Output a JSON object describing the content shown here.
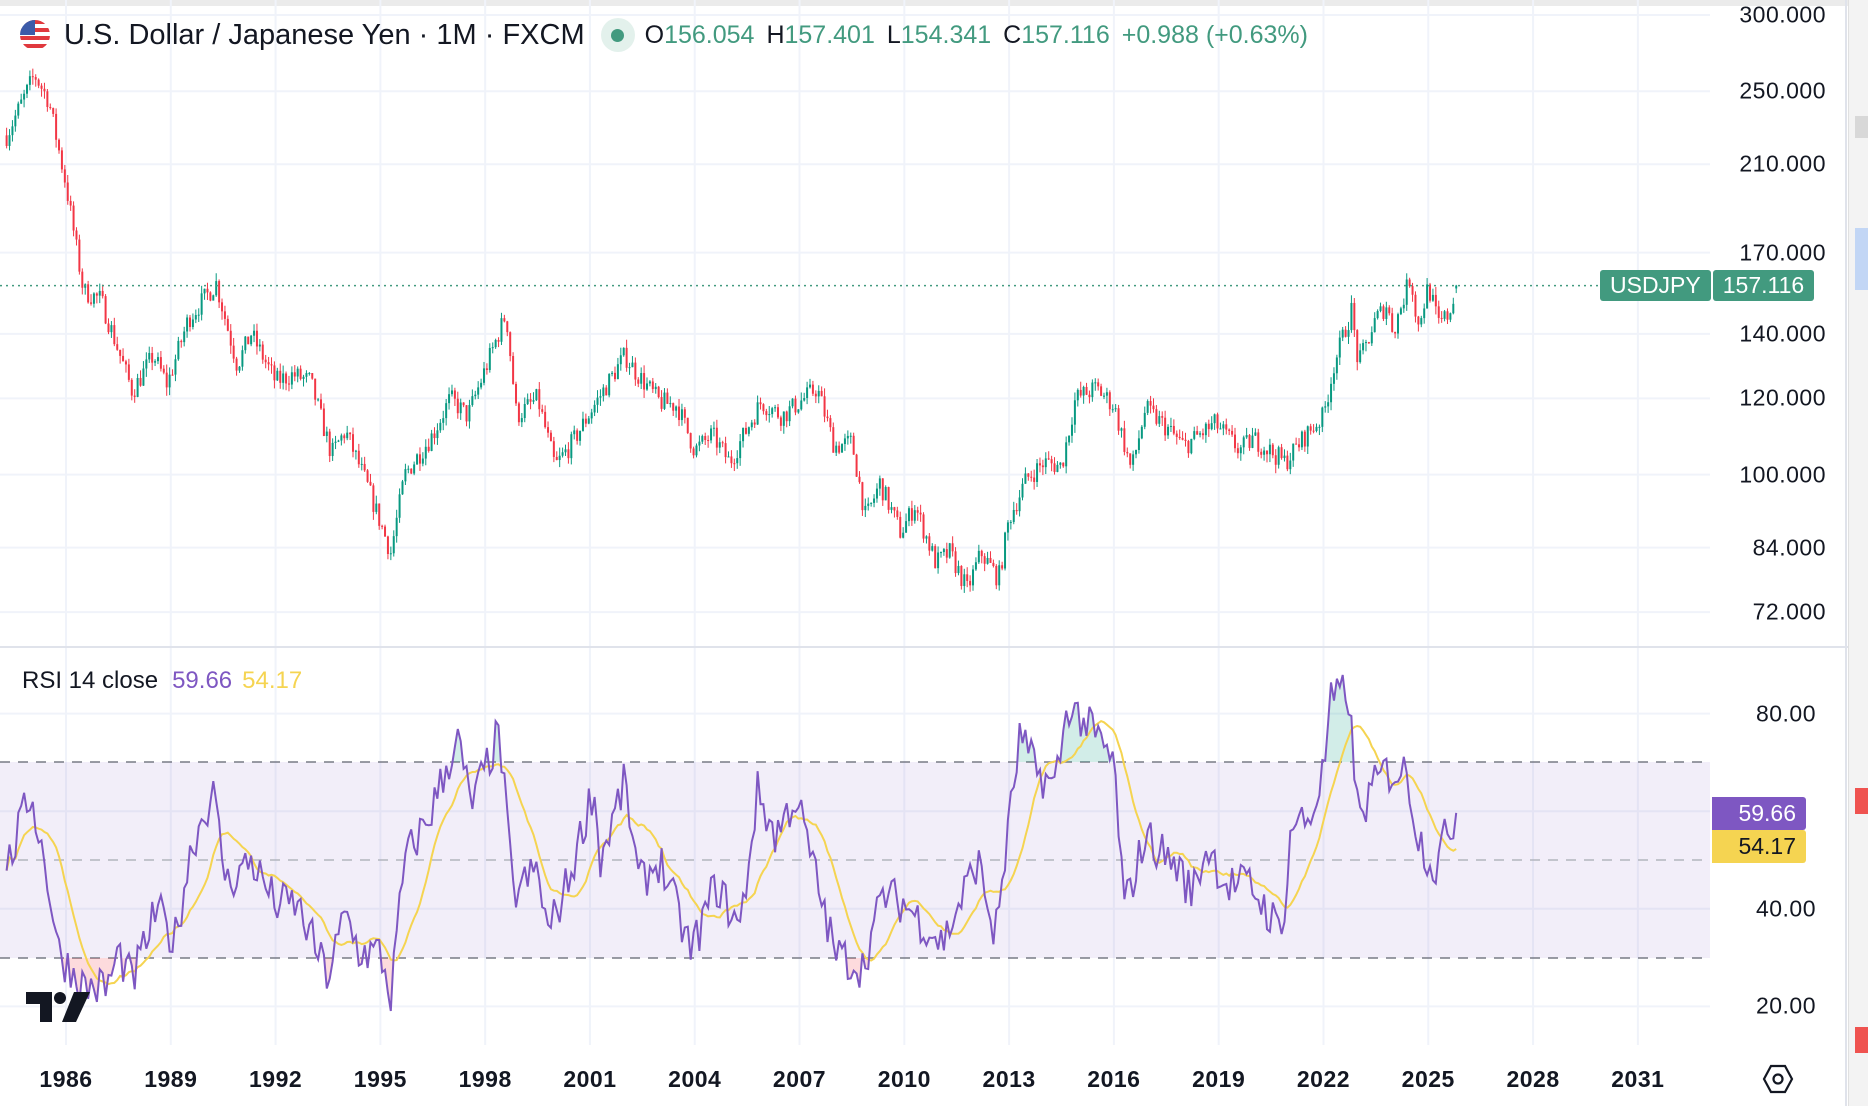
{
  "header": {
    "title": "U.S. Dollar / Japanese Yen · 1M · FXCM",
    "open_label": "O",
    "open": "156.054",
    "high_label": "H",
    "high": "157.401",
    "low_label": "L",
    "low": "154.341",
    "close_label": "C",
    "close": "157.116",
    "change": "+0.988 (+0.63%)"
  },
  "price_label": {
    "symbol": "USDJPY",
    "value": "157.116"
  },
  "rsi_legend": {
    "name": "RSI 14 close",
    "rsi": "59.66",
    "ma": "54.17"
  },
  "colors": {
    "up": "#089981",
    "down": "#f23645",
    "accent": "#429a7f",
    "rsi": "#7e57c2",
    "rsi_ma": "#f5d451",
    "band": "#7e57c2"
  },
  "chart_data": [
    {
      "type": "candlestick",
      "title": "U.S. Dollar / Japanese Yen · 1M · FXCM",
      "scale": "log",
      "ylim": [
        70,
        305
      ],
      "y_ticks": [
        "300.000",
        "250.000",
        "210.000",
        "170.000",
        "140.000",
        "120.000",
        "100.000",
        "84.000",
        "72.000"
      ],
      "y_tick_values": [
        300,
        250,
        210,
        170,
        140,
        120,
        100,
        84,
        72
      ],
      "x_ticks": [
        "1986",
        "1989",
        "1992",
        "1995",
        "1998",
        "2001",
        "2004",
        "2007",
        "2010",
        "2013",
        "2016",
        "2019",
        "2022",
        "2025",
        "2028",
        "2031"
      ],
      "last_candle": {
        "open": 156.054,
        "high": 157.401,
        "low": 154.341,
        "close": 157.116
      },
      "close_keypoints": [
        [
          1984.3,
          225
        ],
        [
          1985.1,
          260
        ],
        [
          1985.5,
          245
        ],
        [
          1986.0,
          200
        ],
        [
          1986.5,
          155
        ],
        [
          1987.0,
          152
        ],
        [
          1987.9,
          122
        ],
        [
          1988.5,
          133
        ],
        [
          1988.9,
          124
        ],
        [
          1989.5,
          145
        ],
        [
          1990.3,
          158
        ],
        [
          1990.9,
          130
        ],
        [
          1991.3,
          140
        ],
        [
          1992.0,
          125
        ],
        [
          1992.5,
          127
        ],
        [
          1993.0,
          125
        ],
        [
          1993.6,
          105
        ],
        [
          1994.0,
          111
        ],
        [
          1994.6,
          98
        ],
        [
          1995.3,
          83
        ],
        [
          1995.7,
          100
        ],
        [
          1996.5,
          110
        ],
        [
          1997.0,
          120
        ],
        [
          1997.5,
          115
        ],
        [
          1998.6,
          147
        ],
        [
          1998.9,
          115
        ],
        [
          1999.5,
          120
        ],
        [
          2000.0,
          102
        ],
        [
          2000.5,
          108
        ],
        [
          2001.0,
          116
        ],
        [
          2002.0,
          133
        ],
        [
          2002.3,
          128
        ],
        [
          2003.0,
          119
        ],
        [
          2003.5,
          118
        ],
        [
          2004.0,
          106
        ],
        [
          2004.5,
          110
        ],
        [
          2005.0,
          103
        ],
        [
          2005.9,
          119
        ],
        [
          2006.5,
          115
        ],
        [
          2007.5,
          123
        ],
        [
          2008.0,
          107
        ],
        [
          2008.5,
          108
        ],
        [
          2008.9,
          90
        ],
        [
          2009.3,
          98
        ],
        [
          2009.9,
          87
        ],
        [
          2010.3,
          93
        ],
        [
          2010.9,
          81
        ],
        [
          2011.3,
          83
        ],
        [
          2011.8,
          76
        ],
        [
          2012.2,
          83
        ],
        [
          2012.7,
          78
        ],
        [
          2013.0,
          90
        ],
        [
          2013.5,
          99
        ],
        [
          2014.0,
          103
        ],
        [
          2014.5,
          102
        ],
        [
          2014.9,
          120
        ],
        [
          2015.5,
          123
        ],
        [
          2016.0,
          118
        ],
        [
          2016.5,
          101
        ],
        [
          2016.9,
          117
        ],
        [
          2017.5,
          112
        ],
        [
          2018.0,
          107
        ],
        [
          2018.9,
          113
        ],
        [
          2019.6,
          106
        ],
        [
          2020.0,
          109
        ],
        [
          2020.3,
          107
        ],
        [
          2020.9,
          103
        ],
        [
          2021.5,
          110
        ],
        [
          2022.0,
          115
        ],
        [
          2022.3,
          130
        ],
        [
          2022.8,
          148
        ],
        [
          2023.0,
          130
        ],
        [
          2023.5,
          145
        ],
        [
          2023.8,
          150
        ],
        [
          2024.0,
          141
        ],
        [
          2024.5,
          161
        ],
        [
          2024.7,
          142
        ],
        [
          2025.0,
          157
        ],
        [
          2025.3,
          143
        ],
        [
          2025.6,
          147
        ],
        [
          2025.8,
          157.116
        ]
      ]
    },
    {
      "type": "line",
      "title": "RSI 14 close",
      "ylim": [
        15,
        90
      ],
      "y_ticks": [
        "80.00",
        "40.00",
        "20.00"
      ],
      "y_tick_values": [
        80,
        40,
        20
      ],
      "bands": {
        "upper": 70,
        "middle": 50,
        "lower": 30
      },
      "last_values": {
        "rsi": 59.66,
        "ma": 54.17
      },
      "rsi_keypoints": [
        [
          1984.3,
          48
        ],
        [
          1985.0,
          64
        ],
        [
          1985.5,
          45
        ],
        [
          1985.8,
          31
        ],
        [
          1986.5,
          24
        ],
        [
          1987.2,
          24
        ],
        [
          1987.5,
          31
        ],
        [
          1987.9,
          25
        ],
        [
          1988.6,
          40
        ],
        [
          1989.1,
          33
        ],
        [
          1989.6,
          53
        ],
        [
          1990.2,
          64
        ],
        [
          1990.6,
          45
        ],
        [
          1991.3,
          50
        ],
        [
          1992.0,
          41
        ],
        [
          1992.6,
          41
        ],
        [
          1993.5,
          26
        ],
        [
          1994.0,
          39
        ],
        [
          1994.4,
          31
        ],
        [
          1995.0,
          31
        ],
        [
          1995.3,
          22
        ],
        [
          1995.7,
          50
        ],
        [
          1996.4,
          59
        ],
        [
          1997.2,
          75
        ],
        [
          1997.6,
          61
        ],
        [
          1998.4,
          76
        ],
        [
          1998.8,
          43
        ],
        [
          1999.5,
          48
        ],
        [
          1999.8,
          35
        ],
        [
          2000.4,
          46
        ],
        [
          2001.1,
          65
        ],
        [
          2001.3,
          50
        ],
        [
          2002.0,
          66
        ],
        [
          2002.4,
          45
        ],
        [
          2003.0,
          50
        ],
        [
          2003.9,
          31
        ],
        [
          2004.6,
          45
        ],
        [
          2005.3,
          36
        ],
        [
          2005.8,
          64
        ],
        [
          2006.3,
          55
        ],
        [
          2006.9,
          63
        ],
        [
          2008.0,
          31
        ],
        [
          2008.8,
          28
        ],
        [
          2009.4,
          43
        ],
        [
          2010.0,
          41
        ],
        [
          2011.1,
          33
        ],
        [
          2012.1,
          50
        ],
        [
          2012.6,
          34
        ],
        [
          2013.3,
          75
        ],
        [
          2013.8,
          68
        ],
        [
          2014.3,
          65
        ],
        [
          2014.7,
          82
        ],
        [
          2015.3,
          77
        ],
        [
          2016.0,
          70
        ],
        [
          2016.3,
          40
        ],
        [
          2016.9,
          55
        ],
        [
          2017.9,
          48
        ],
        [
          2018.2,
          43
        ],
        [
          2018.7,
          53
        ],
        [
          2019.2,
          45
        ],
        [
          2019.9,
          45
        ],
        [
          2020.8,
          35
        ],
        [
          2021.1,
          58
        ],
        [
          2021.6,
          58
        ],
        [
          2022.0,
          68
        ],
        [
          2022.2,
          82
        ],
        [
          2022.7,
          85
        ],
        [
          2023.0,
          58
        ],
        [
          2023.3,
          63
        ],
        [
          2023.7,
          68
        ],
        [
          2024.4,
          68
        ],
        [
          2024.7,
          55
        ],
        [
          2025.2,
          48
        ],
        [
          2025.4,
          53
        ],
        [
          2025.8,
          59.66
        ]
      ]
    }
  ]
}
